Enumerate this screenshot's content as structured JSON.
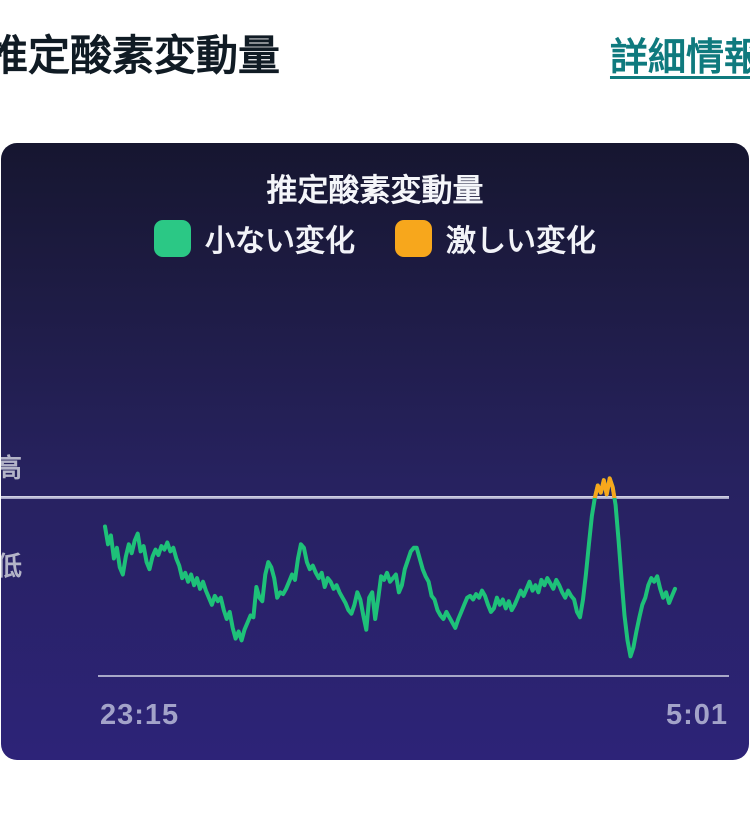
{
  "header": {
    "title": "推定酸素変動量",
    "details_link": "詳細情報"
  },
  "card": {
    "title": "推定酸素変動量",
    "legend": [
      {
        "label": "小ない変化",
        "color": "#2bc885"
      },
      {
        "label": "激しい変化",
        "color": "#f7a71c"
      }
    ]
  },
  "chart_data": {
    "type": "line",
    "title": "推定酸素変動量",
    "x_axis": {
      "start_label": "23:15",
      "end_label": "5:01"
    },
    "y_axis": {
      "high_label": "高",
      "low_label": "低",
      "threshold": 100,
      "range": [
        0,
        115
      ]
    },
    "legend_entries": [
      "小ない変化",
      "激しい変化"
    ],
    "colors": {
      "line": "#1ec179",
      "above_threshold": "#f7a71c",
      "threshold_line": "#b9b9d4",
      "axis_line": "#a8a8c8"
    },
    "values": [
      84,
      74,
      79,
      66,
      72,
      61,
      57,
      67,
      74,
      69,
      76,
      80,
      70,
      73,
      64,
      60,
      67,
      71,
      68,
      73,
      71,
      75,
      70,
      72,
      66,
      62,
      55,
      58,
      53,
      57,
      51,
      55,
      49,
      53,
      48,
      44,
      40,
      45,
      42,
      44,
      37,
      32,
      36,
      27,
      21,
      25,
      20,
      26,
      30,
      34,
      33,
      50,
      44,
      42,
      57,
      64,
      61,
      55,
      44,
      47,
      46,
      49,
      53,
      57,
      54,
      66,
      74,
      72,
      64,
      60,
      62,
      58,
      55,
      58,
      50,
      55,
      53,
      49,
      51,
      47,
      44,
      41,
      37,
      35,
      40,
      47,
      43,
      34,
      26,
      44,
      47,
      32,
      43,
      56,
      54,
      58,
      53,
      55,
      57,
      47,
      51,
      60,
      65,
      70,
      72,
      72,
      66,
      60,
      56,
      53,
      45,
      43,
      37,
      34,
      32,
      36,
      33,
      30,
      27,
      32,
      36,
      40,
      44,
      45,
      43,
      46,
      44,
      48,
      45,
      40,
      36,
      38,
      44,
      40,
      43,
      38,
      42,
      37,
      40,
      44,
      48,
      45,
      49,
      53,
      48,
      51,
      47,
      54,
      51,
      55,
      52,
      49,
      54,
      51,
      47,
      44,
      48,
      45,
      43,
      36,
      33,
      43,
      57,
      74,
      90,
      100,
      107,
      103,
      110,
      102,
      111,
      106,
      96,
      76,
      54,
      34,
      20,
      11,
      16,
      25,
      33,
      40,
      44,
      51,
      55,
      53,
      56,
      49,
      44,
      47,
      41,
      45,
      49
    ]
  }
}
